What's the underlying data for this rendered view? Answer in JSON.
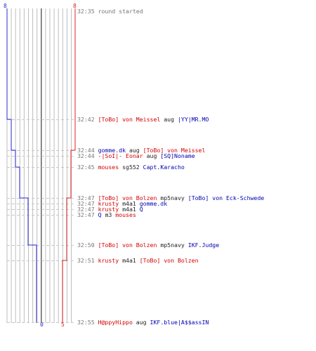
{
  "colors": {
    "team_a": "#2a2ad8",
    "team_b": "#e02020",
    "grid": "#bdbdbd",
    "center": "#555555",
    "time": "#777777",
    "dash": "#c8c8c8"
  },
  "scores": {
    "team_a_start": "8",
    "team_b_start": "8",
    "team_a_end": "0",
    "team_b_end": "5"
  },
  "events": [
    {
      "time": "32:35",
      "parts": [
        {
          "text": "round started",
          "color": "gray"
        }
      ]
    },
    {
      "time": "32:42",
      "parts": [
        {
          "text": "[ToBo] von Meissel",
          "color": "red"
        },
        {
          "text": " aug ",
          "color": "black"
        },
        {
          "text": "|YY|MR.MO",
          "color": "blue"
        }
      ]
    },
    {
      "time": "32:44",
      "parts": [
        {
          "text": "gomme.dk",
          "color": "blue"
        },
        {
          "text": " aug ",
          "color": "black"
        },
        {
          "text": "[ToBo] von Meissel",
          "color": "red"
        }
      ]
    },
    {
      "time": "32:44",
      "parts": [
        {
          "text": "-|SoI|- Eonar",
          "color": "red"
        },
        {
          "text": " aug ",
          "color": "black"
        },
        {
          "text": "[SQ]Noname",
          "color": "blue"
        }
      ]
    },
    {
      "time": "32:45",
      "parts": [
        {
          "text": "mouses",
          "color": "red"
        },
        {
          "text": " sg552 ",
          "color": "black"
        },
        {
          "text": "Capt.Karacho",
          "color": "blue"
        }
      ]
    },
    {
      "time": "32:47",
      "parts": [
        {
          "text": "[ToBo] von Bolzen",
          "color": "red"
        },
        {
          "text": " mp5navy ",
          "color": "black"
        },
        {
          "text": "[ToBo] von Eck-Schwede",
          "color": "blue"
        }
      ]
    },
    {
      "time": "32:47",
      "parts": [
        {
          "text": "krusty",
          "color": "red"
        },
        {
          "text": " m4a1 ",
          "color": "black"
        },
        {
          "text": "gomme.dk",
          "color": "blue"
        }
      ]
    },
    {
      "time": "32:47",
      "parts": [
        {
          "text": "krusty",
          "color": "red"
        },
        {
          "text": " m4a1 ",
          "color": "black"
        },
        {
          "text": "Q",
          "color": "blue"
        }
      ]
    },
    {
      "time": "32:47",
      "parts": [
        {
          "text": "Q",
          "color": "blue"
        },
        {
          "text": " m3 ",
          "color": "black"
        },
        {
          "text": "mouses",
          "color": "red"
        }
      ]
    },
    {
      "time": "32:50",
      "parts": [
        {
          "text": "[ToBo] von Bolzen",
          "color": "red"
        },
        {
          "text": " mp5navy ",
          "color": "black"
        },
        {
          "text": "IKF.Judge",
          "color": "blue"
        }
      ]
    },
    {
      "time": "32:51",
      "parts": [
        {
          "text": "krusty",
          "color": "red"
        },
        {
          "text": " m4a1 ",
          "color": "black"
        },
        {
          "text": "[ToBo] von Bolzen",
          "color": "red"
        }
      ]
    },
    {
      "time": "32:55",
      "parts": [
        {
          "text": "H@ppyHippo",
          "color": "red"
        },
        {
          "text": " aug ",
          "color": "black"
        },
        {
          "text": "IKF.blue|A$$assIN",
          "color": "blue"
        }
      ]
    }
  ]
}
